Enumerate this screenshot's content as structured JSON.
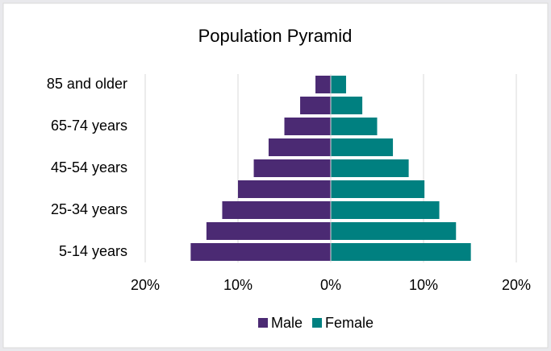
{
  "chart_data": {
    "type": "bar",
    "orientation": "horizontal",
    "title": "Population Pyramid",
    "categories": [
      "5-14 years",
      null,
      "25-34 years",
      null,
      "45-54 years",
      null,
      "65-74 years",
      null,
      "85 and older"
    ],
    "series": [
      {
        "name": "Male",
        "color": "#4b2a73",
        "values": [
          -15.1,
          -13.4,
          -11.7,
          -10.0,
          -8.3,
          -6.7,
          -5.0,
          -3.3,
          -1.65
        ]
      },
      {
        "name": "Female",
        "color": "#008080",
        "values": [
          15.1,
          13.5,
          11.7,
          10.1,
          8.4,
          6.7,
          5.0,
          3.4,
          1.65
        ]
      }
    ],
    "xlim": [
      -20,
      20
    ],
    "xticks": [
      {
        "value": -20,
        "label": "20%"
      },
      {
        "value": -10,
        "label": "10%"
      },
      {
        "value": 0,
        "label": "0%"
      },
      {
        "value": 10,
        "label": "10%"
      },
      {
        "value": 20,
        "label": "20%"
      }
    ],
    "grid": true,
    "legend": "bottom"
  }
}
